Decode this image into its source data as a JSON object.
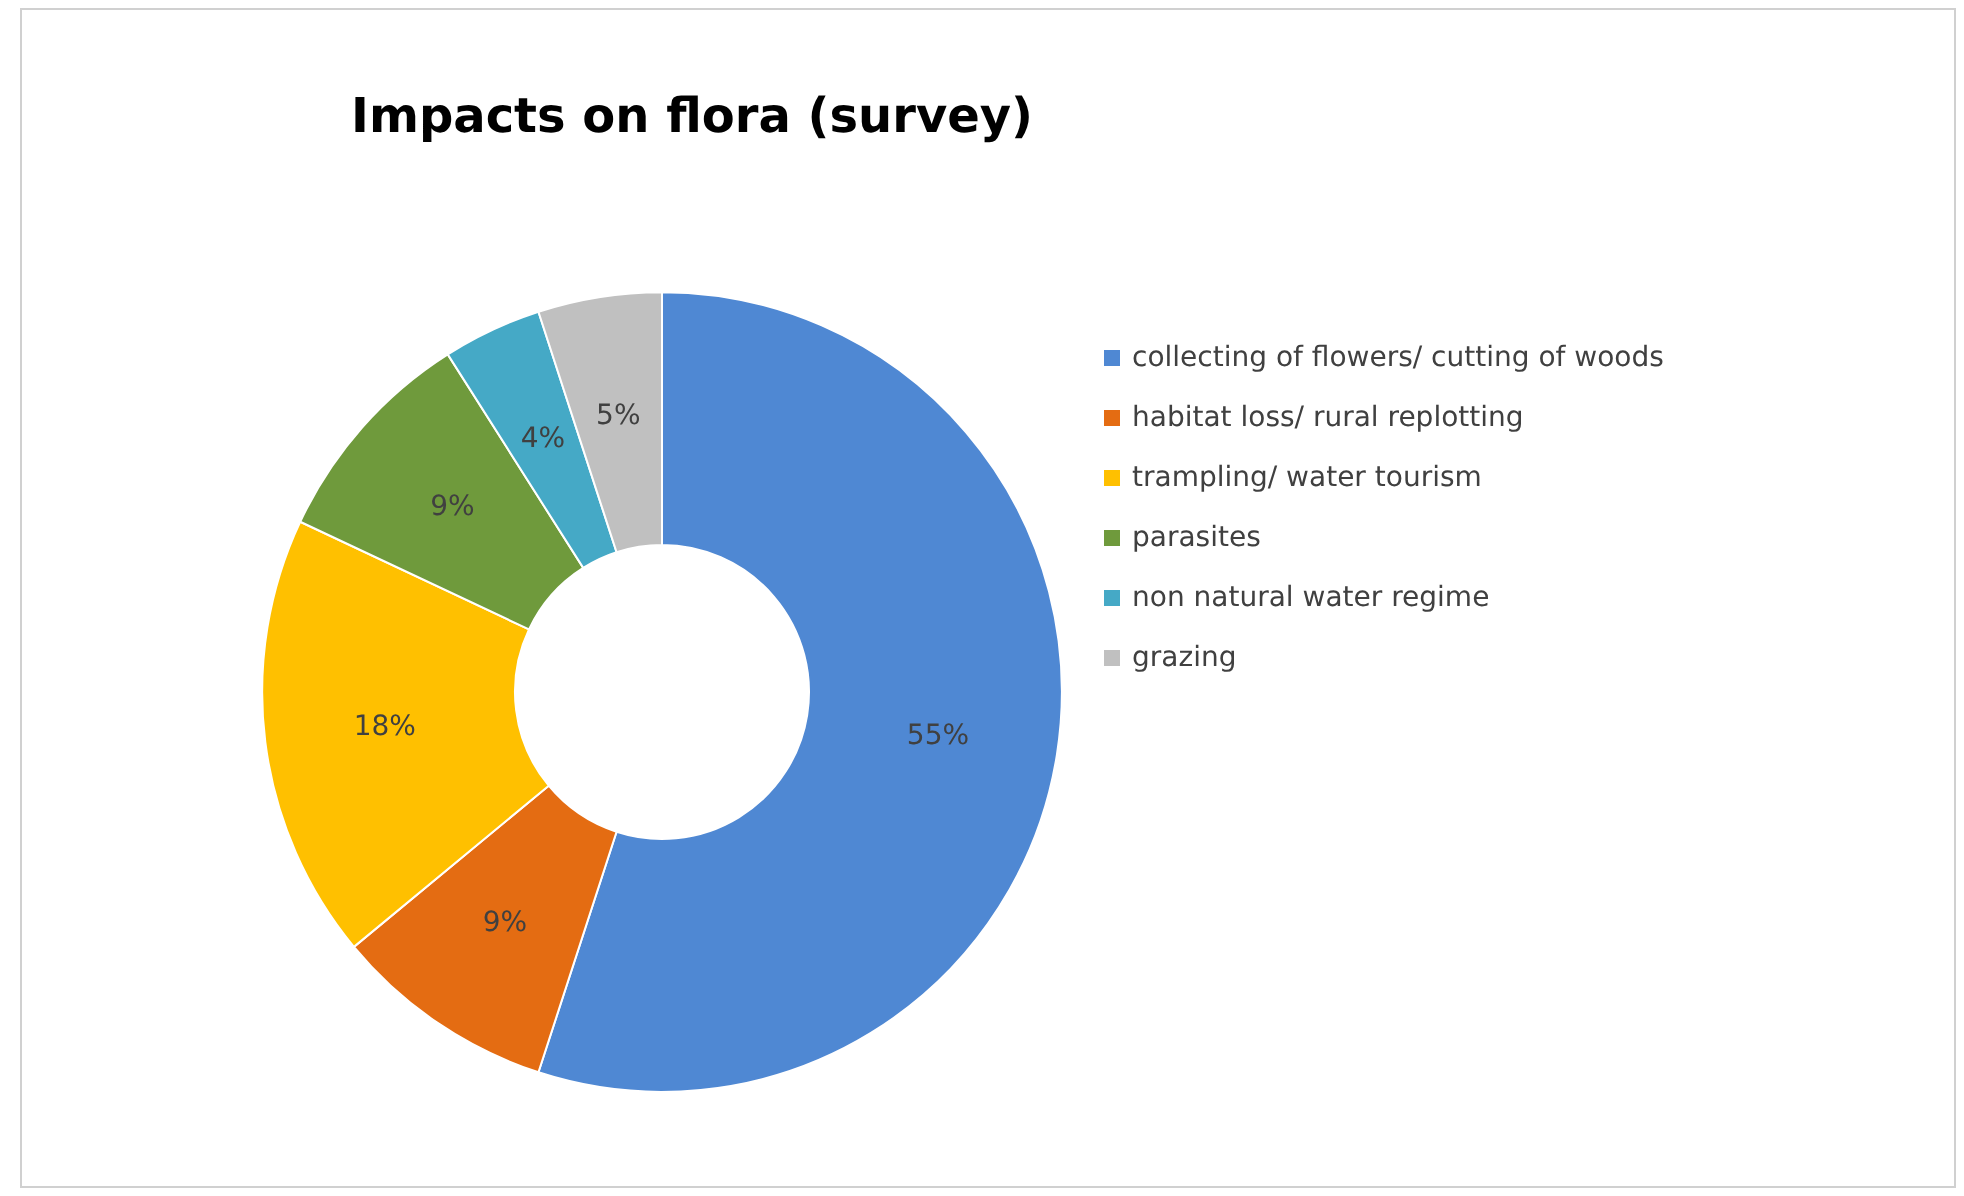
{
  "chart_data": {
    "type": "donut",
    "title": "Impacts on flora (survey)",
    "categories": [
      "collecting of flowers/ cutting of woods",
      "habitat loss/ rural replotting",
      "trampling/ water tourism",
      "parasites",
      "non natural water regime",
      "grazing"
    ],
    "values": [
      55,
      9,
      18,
      9,
      4,
      5
    ],
    "colors": [
      "#4f88d3",
      "#e46c12",
      "#ffc000",
      "#6f9a3c",
      "#45a9c6",
      "#c0c0c0"
    ],
    "value_labels": [
      "55%",
      "9%",
      "18%",
      "9%",
      "4%",
      "5%"
    ],
    "legend": "right"
  }
}
